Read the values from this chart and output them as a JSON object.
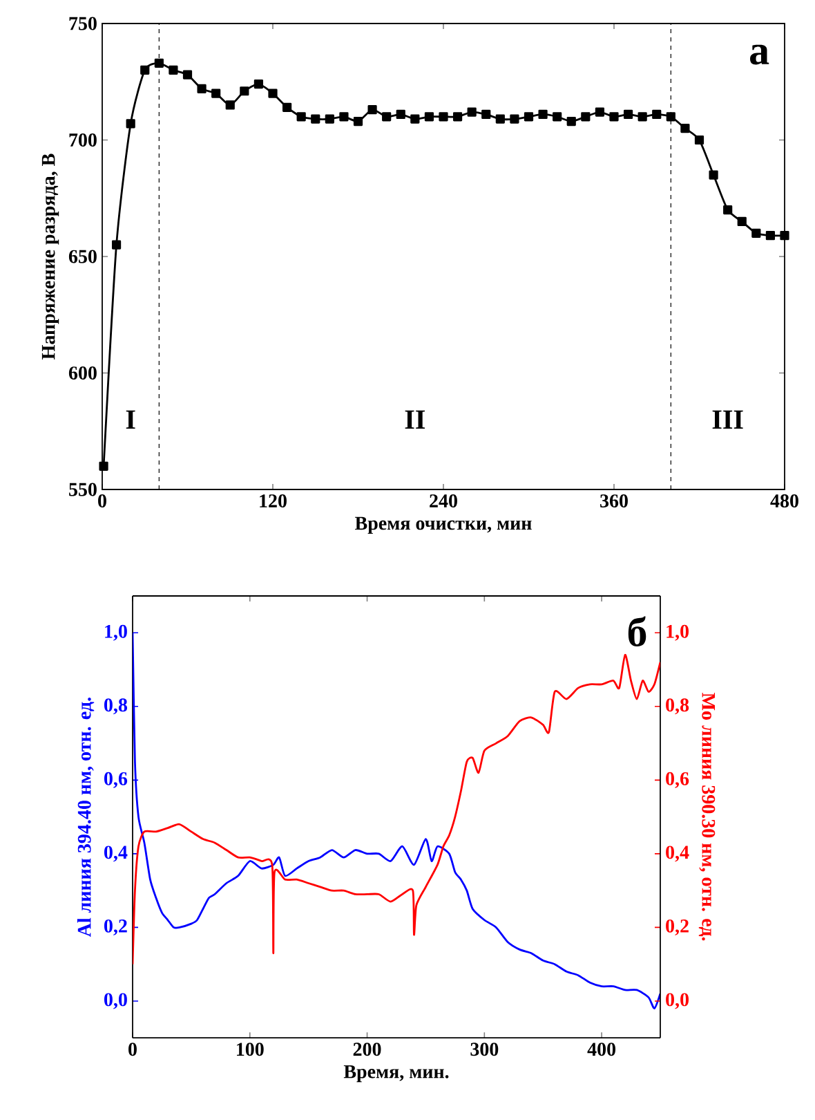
{
  "chart_data": [
    {
      "type": "line",
      "xlabel": "Время очистки, мин",
      "ylabel": "Напряжение разряда, В",
      "xlim": [
        0,
        480
      ],
      "ylim": [
        550,
        750
      ],
      "xticks": [
        0,
        120,
        240,
        360,
        480
      ],
      "yticks": [
        550,
        600,
        650,
        700,
        750
      ],
      "marker": "square",
      "series": [
        {
          "color": "#000000",
          "x": [
            1,
            10,
            20,
            30,
            40,
            50,
            60,
            70,
            80,
            90,
            100,
            110,
            120,
            130,
            140,
            150,
            160,
            170,
            180,
            190,
            200,
            210,
            220,
            230,
            240,
            250,
            260,
            270,
            280,
            290,
            300,
            310,
            320,
            330,
            340,
            350,
            360,
            370,
            380,
            390,
            400,
            410,
            420,
            430,
            440,
            450,
            460,
            470,
            480
          ],
          "values": [
            560,
            655,
            707,
            730,
            733,
            730,
            728,
            722,
            720,
            715,
            721,
            724,
            720,
            714,
            710,
            709,
            709,
            710,
            708,
            713,
            710,
            711,
            709,
            710,
            710,
            710,
            712,
            711,
            709,
            709,
            710,
            711,
            710,
            708,
            710,
            712,
            710,
            711,
            710,
            711,
            710,
            705,
            700,
            685,
            670,
            665,
            660,
            659,
            659
          ]
        }
      ],
      "ref_lines": [
        {
          "axis": "x",
          "value": 40,
          "line_style": "dashed"
        },
        {
          "axis": "x",
          "value": 400,
          "line_style": "dashed"
        }
      ],
      "annotations": [
        "a",
        "I",
        "II",
        "III"
      ]
    },
    {
      "type": "line",
      "xlabel": "Время, мин.",
      "ylabel": "Al линия 394.40 нм, отн. ед.",
      "y2label": "Mo линия 390.30 нм, отн. ед.",
      "xlim": [
        0,
        450
      ],
      "ylim": [
        -0.1,
        1.1
      ],
      "y2lim": [
        -0.1,
        1.1
      ],
      "xticks": [
        0,
        100,
        200,
        300,
        400
      ],
      "yticks": [
        {
          "value": 0,
          "label": "0,0"
        },
        {
          "value": 0.2,
          "label": "0,2"
        },
        {
          "value": 0.4,
          "label": "0,4"
        },
        {
          "value": 0.6,
          "label": "0,6"
        },
        {
          "value": 0.8,
          "label": "0,8"
        },
        {
          "value": 1,
          "label": "1,0"
        }
      ],
      "y2ticks": [
        {
          "value": 0,
          "label": "0,0"
        },
        {
          "value": 0.2,
          "label": "0,2"
        },
        {
          "value": 0.4,
          "label": "0,4"
        },
        {
          "value": 0.6,
          "label": "0,6"
        },
        {
          "value": 0.8,
          "label": "0,8"
        },
        {
          "value": 1,
          "label": "1,0"
        }
      ],
      "series": [
        {
          "color": "#0000ff",
          "x": [
            0,
            2,
            5,
            10,
            15,
            20,
            25,
            30,
            35,
            40,
            50,
            55,
            60,
            65,
            70,
            80,
            90,
            100,
            110,
            120,
            125,
            130,
            140,
            150,
            160,
            170,
            180,
            190,
            200,
            210,
            220,
            230,
            240,
            250,
            255,
            260,
            270,
            275,
            280,
            285,
            290,
            300,
            310,
            320,
            330,
            340,
            350,
            360,
            370,
            380,
            390,
            400,
            410,
            420,
            430,
            440,
            445,
            450
          ],
          "values": [
            1.0,
            0.65,
            0.5,
            0.43,
            0.33,
            0.28,
            0.24,
            0.22,
            0.2,
            0.2,
            0.21,
            0.22,
            0.25,
            0.28,
            0.29,
            0.32,
            0.34,
            0.38,
            0.36,
            0.37,
            0.39,
            0.34,
            0.36,
            0.38,
            0.39,
            0.41,
            0.39,
            0.41,
            0.4,
            0.4,
            0.38,
            0.42,
            0.37,
            0.44,
            0.38,
            0.42,
            0.4,
            0.35,
            0.33,
            0.3,
            0.25,
            0.22,
            0.2,
            0.16,
            0.14,
            0.13,
            0.11,
            0.1,
            0.08,
            0.07,
            0.05,
            0.04,
            0.04,
            0.03,
            0.03,
            0.01,
            -0.02,
            0.02
          ]
        },
        {
          "color": "#ff0000",
          "axis": "y2",
          "x": [
            0,
            2,
            5,
            10,
            20,
            30,
            40,
            50,
            60,
            70,
            80,
            90,
            100,
            110,
            119,
            120,
            121,
            130,
            140,
            150,
            160,
            170,
            180,
            190,
            200,
            210,
            220,
            230,
            239,
            240,
            242,
            250,
            260,
            265,
            270,
            275,
            280,
            285,
            290,
            295,
            300,
            310,
            320,
            330,
            340,
            350,
            355,
            360,
            370,
            380,
            390,
            400,
            410,
            415,
            420,
            425,
            430,
            435,
            440,
            445,
            450
          ],
          "values": [
            0.1,
            0.3,
            0.42,
            0.46,
            0.46,
            0.47,
            0.48,
            0.46,
            0.44,
            0.43,
            0.41,
            0.39,
            0.39,
            0.38,
            0.37,
            0.13,
            0.35,
            0.33,
            0.33,
            0.32,
            0.31,
            0.3,
            0.3,
            0.29,
            0.29,
            0.29,
            0.27,
            0.29,
            0.3,
            0.18,
            0.26,
            0.31,
            0.37,
            0.42,
            0.45,
            0.5,
            0.57,
            0.65,
            0.66,
            0.62,
            0.68,
            0.7,
            0.72,
            0.76,
            0.77,
            0.75,
            0.73,
            0.84,
            0.82,
            0.85,
            0.86,
            0.86,
            0.87,
            0.85,
            0.94,
            0.87,
            0.82,
            0.87,
            0.84,
            0.86,
            0.92
          ]
        }
      ],
      "annotations": [
        "б"
      ]
    }
  ]
}
